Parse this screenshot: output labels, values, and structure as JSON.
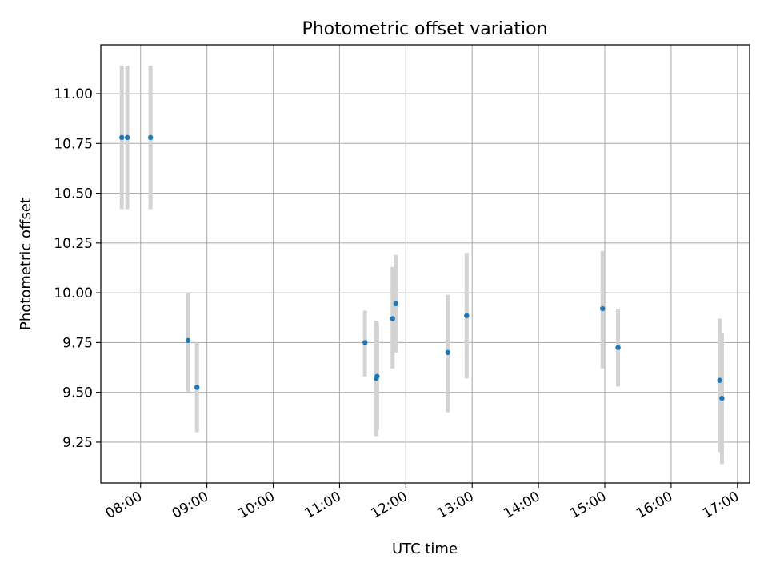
{
  "chart_data": {
    "type": "scatter",
    "title": "Photometric offset variation",
    "xlabel": "UTC time",
    "ylabel": "Photometric offset",
    "x_tick_labels": [
      "08:00",
      "09:00",
      "10:00",
      "11:00",
      "12:00",
      "13:00",
      "14:00",
      "15:00",
      "16:00",
      "17:00"
    ],
    "y_tick_labels": [
      "9.25",
      "9.50",
      "9.75",
      "10.00",
      "10.25",
      "10.50",
      "10.75",
      "11.00"
    ],
    "xlim": [
      "07:24",
      "17:11"
    ],
    "ylim": [
      9.045,
      11.245
    ],
    "grid": true,
    "series": [
      {
        "marker_color": "#1f77b4",
        "errorbar_color": "#d3d3d3",
        "points": [
          {
            "x": "07:43",
            "y": 10.78,
            "yerr_low": 10.42,
            "yerr_high": 11.14
          },
          {
            "x": "07:48",
            "y": 10.78,
            "yerr_low": 10.42,
            "yerr_high": 11.14
          },
          {
            "x": "08:09",
            "y": 10.78,
            "yerr_low": 10.42,
            "yerr_high": 11.14
          },
          {
            "x": "08:43",
            "y": 9.76,
            "yerr_low": 9.5,
            "yerr_high": 10.0
          },
          {
            "x": "08:51",
            "y": 9.525,
            "yerr_low": 9.3,
            "yerr_high": 9.75
          },
          {
            "x": "11:23",
            "y": 9.75,
            "yerr_low": 9.58,
            "yerr_high": 9.91
          },
          {
            "x": "11:33",
            "y": 9.57,
            "yerr_low": 9.28,
            "yerr_high": 9.86
          },
          {
            "x": "11:34",
            "y": 9.58,
            "yerr_low": 9.31,
            "yerr_high": 9.85
          },
          {
            "x": "11:48",
            "y": 9.87,
            "yerr_low": 9.62,
            "yerr_high": 10.13
          },
          {
            "x": "11:51",
            "y": 9.945,
            "yerr_low": 9.7,
            "yerr_high": 10.19
          },
          {
            "x": "12:38",
            "y": 9.7,
            "yerr_low": 9.4,
            "yerr_high": 9.99
          },
          {
            "x": "12:55",
            "y": 9.885,
            "yerr_low": 9.57,
            "yerr_high": 10.2
          },
          {
            "x": "14:58",
            "y": 9.92,
            "yerr_low": 9.62,
            "yerr_high": 10.21
          },
          {
            "x": "15:12",
            "y": 9.725,
            "yerr_low": 9.53,
            "yerr_high": 9.92
          },
          {
            "x": "16:44",
            "y": 9.56,
            "yerr_low": 9.2,
            "yerr_high": 9.87
          },
          {
            "x": "16:46",
            "y": 9.47,
            "yerr_low": 9.14,
            "yerr_high": 9.8
          }
        ]
      }
    ]
  }
}
